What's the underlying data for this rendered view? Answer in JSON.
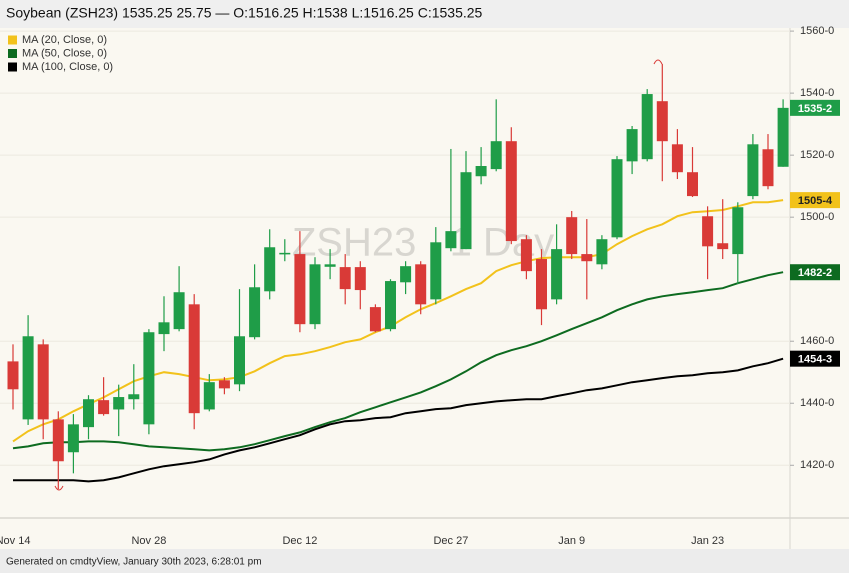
{
  "header": {
    "title": "Soybean (ZSH23) 1535.25 25.75 — O:1516.25 H:1538 L:1516.25 C:1535.25",
    "footer": "Generated on cmdtyView, January 30th 2023, 6:28:01 pm"
  },
  "chart_data": {
    "type": "candlestick",
    "watermark": "ZSH23 , 1 Day",
    "categories": [
      "Nov 14",
      null,
      null,
      null,
      null,
      null,
      null,
      null,
      null,
      "Nov 28",
      null,
      null,
      null,
      null,
      null,
      null,
      null,
      null,
      null,
      "Dec 12",
      null,
      null,
      null,
      null,
      null,
      null,
      null,
      null,
      null,
      "Dec 27",
      null,
      null,
      null,
      null,
      null,
      null,
      null,
      "Jan 9",
      null,
      null,
      null,
      null,
      null,
      null,
      null,
      null,
      "Jan 23",
      null,
      null,
      null,
      null,
      null
    ],
    "open": [
      1453.5,
      1434.8,
      1459,
      1434.8,
      1424.2,
      1432.3,
      1441,
      1438,
      1441.3,
      1433.2,
      1462.3,
      1463.9,
      1471.9,
      1438,
      1447.4,
      1446.1,
      1461.3,
      1476.1,
      1488,
      1488.1,
      1465.5,
      1484,
      1483.9,
      1483.9,
      1471,
      1463.9,
      1479,
      1484.8,
      1473.5,
      1490,
      1489.7,
      1513.2,
      1515.5,
      1524.5,
      1492.9,
      1486.5,
      1473.5,
      1500,
      1488.1,
      1484.8,
      1493.5,
      1518,
      1518.7,
      1537.4,
      1523.5,
      1514.5,
      1500.3,
      1491.6,
      1488.1,
      1506.8,
      1521.9,
      1516.25
    ],
    "high": [
      1459,
      1468.4,
      1460.6,
      1437.4,
      1436.5,
      1442.6,
      1448.4,
      1446,
      1452.6,
      1463.9,
      1474.5,
      1484.2,
      1475.2,
      1449.4,
      1448.4,
      1476.8,
      1484.8,
      1496.1,
      1492.9,
      1495.5,
      1487.1,
      1489.7,
      1488.1,
      1485.8,
      1471.9,
      1480,
      1485.8,
      1485.8,
      1496.8,
      1522,
      1521.3,
      1522.6,
      1538,
      1529,
      1494.2,
      1489.7,
      1497.7,
      1502,
      1499.4,
      1494.2,
      1519.7,
      1529.4,
      1541.3,
      1549.4,
      1528.4,
      1522.6,
      1503.5,
      1505.8,
      1504.8,
      1526.8,
      1526.8,
      1538
    ],
    "low": [
      1438,
      1433,
      1428.4,
      1412.3,
      1417.4,
      1428.4,
      1436,
      1429.4,
      1438,
      1430,
      1456.8,
      1463.2,
      1431.6,
      1437.4,
      1442.9,
      1443.9,
      1460.6,
      1473.5,
      1485.8,
      1462.9,
      1463.9,
      1480,
      1471.9,
      1470.3,
      1462.9,
      1463.2,
      1475.2,
      1468.7,
      1471.9,
      1489,
      1489.7,
      1510.6,
      1514.8,
      1491.3,
      1480,
      1465.2,
      1471.9,
      1486.5,
      1473.5,
      1483.2,
      1492.9,
      1513.9,
      1518,
      1511.6,
      1512.3,
      1506.5,
      1480,
      1486.5,
      1478.4,
      1505.8,
      1509,
      1516.25
    ],
    "close": [
      1444.5,
      1461.6,
      1434.8,
      1421.3,
      1433.2,
      1441.3,
      1436.5,
      1442,
      1442.9,
      1462.9,
      1466.1,
      1475.8,
      1436.8,
      1446.8,
      1444.8,
      1461.6,
      1477.4,
      1490.3,
      1488.5,
      1465.5,
      1484.8,
      1484.8,
      1476.8,
      1476.5,
      1463.2,
      1479.4,
      1484.2,
      1471.9,
      1491.9,
      1495.5,
      1514.5,
      1516.5,
      1524.5,
      1492.3,
      1482.6,
      1470.3,
      1489.7,
      1488.1,
      1485.8,
      1492.9,
      1518.7,
      1528.4,
      1539.7,
      1524.5,
      1514.5,
      1506.8,
      1490.6,
      1489.7,
      1503.2,
      1523.5,
      1510,
      1535.25
    ],
    "last_label": "1535-2",
    "up_color": "#1f9d48",
    "down_color": "#d93a37",
    "series": [
      {
        "name": "MA (20, Close, 0)",
        "color": "#f2c21b",
        "last_label": "1505-4",
        "values": [
          1427.7,
          1431,
          1433.2,
          1434.8,
          1437.4,
          1439.7,
          1441.9,
          1444.5,
          1447.1,
          1448.7,
          1450,
          1449.4,
          1448.4,
          1447.4,
          1447.7,
          1448.4,
          1450.3,
          1452.9,
          1455.2,
          1455.8,
          1456.8,
          1458.1,
          1459.7,
          1460.6,
          1462.9,
          1464.8,
          1467.7,
          1470.3,
          1472.3,
          1474.5,
          1476.8,
          1478.7,
          1482.6,
          1484.5,
          1485.8,
          1486.8,
          1487.1,
          1487.1,
          1487.1,
          1488.1,
          1491.3,
          1493.9,
          1496.1,
          1497.7,
          1500.3,
          1501.6,
          1501.9,
          1502.3,
          1503.5,
          1504.8,
          1504.8,
          1505.5
        ]
      },
      {
        "name": "MA (50, Close, 0)",
        "color": "#0d6b20",
        "last_label": "1482-2",
        "values": [
          1425.5,
          1426.1,
          1427.1,
          1427.4,
          1427.4,
          1427.7,
          1427.7,
          1427.4,
          1426.8,
          1426.1,
          1425.8,
          1425.5,
          1425.2,
          1424.8,
          1425.2,
          1425.8,
          1426.8,
          1428.1,
          1429.4,
          1430.6,
          1432.3,
          1433.9,
          1435.2,
          1437.1,
          1438.7,
          1440.3,
          1441.9,
          1443.5,
          1445.5,
          1447.7,
          1450.3,
          1453.2,
          1455.5,
          1457.1,
          1458.4,
          1460,
          1461.9,
          1463.9,
          1465.8,
          1467.7,
          1470,
          1471.9,
          1473.5,
          1474.5,
          1475.2,
          1475.8,
          1476.5,
          1477.1,
          1478.7,
          1480,
          1481.3,
          1482.25
        ]
      },
      {
        "name": "MA (100, Close, 0)",
        "color": "#000000",
        "last_label": "1454-3",
        "values": [
          1415.2,
          1415.2,
          1415.2,
          1415.2,
          1415.2,
          1414.8,
          1415.2,
          1416.1,
          1417.4,
          1418.7,
          1419.7,
          1420.3,
          1421,
          1421.9,
          1423.5,
          1424.8,
          1425.8,
          1427.1,
          1428.4,
          1429.7,
          1431.6,
          1433.2,
          1434.2,
          1434.5,
          1435.2,
          1435.5,
          1436.8,
          1437.4,
          1438.1,
          1438.4,
          1439.4,
          1440,
          1440.6,
          1441,
          1441.3,
          1441.3,
          1442.3,
          1443.2,
          1444.2,
          1444.8,
          1445.8,
          1446.8,
          1447.4,
          1448.1,
          1448.7,
          1449,
          1449.7,
          1450,
          1450.6,
          1451.9,
          1452.9,
          1454.375
        ]
      }
    ],
    "ylim": [
      1403,
      1561
    ],
    "yticks": [
      {
        "value": 1420,
        "label": "1420-0"
      },
      {
        "value": 1440,
        "label": "1440-0"
      },
      {
        "value": 1460,
        "label": "1460-0"
      },
      {
        "value": 1500,
        "label": "1500-0"
      },
      {
        "value": 1520,
        "label": "1520-0"
      },
      {
        "value": 1540,
        "label": "1540-0"
      },
      {
        "value": 1560,
        "label": "1560-0"
      }
    ],
    "grid": true
  }
}
